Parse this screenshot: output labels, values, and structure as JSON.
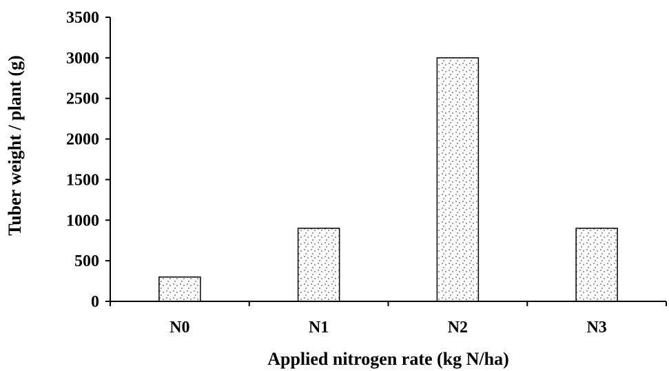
{
  "chart_data": {
    "type": "bar",
    "title": "",
    "xlabel": "Applied nitrogen rate (kg N/ha)",
    "ylabel": "Tuber weight / plant (g)",
    "categories": [
      "N0",
      "N1",
      "N2",
      "N3"
    ],
    "values": [
      300,
      900,
      3000,
      900
    ],
    "ylim": [
      0,
      3500
    ],
    "yticks": [
      0,
      500,
      1000,
      1500,
      2000,
      2500,
      3000,
      3500
    ],
    "grid": false,
    "legend": "none",
    "bar_fill": "dotted pattern",
    "colors": {
      "axis": "#000000",
      "bar_outline": "#000000",
      "bar_dots": "#555555",
      "background": "#ffffff"
    }
  }
}
